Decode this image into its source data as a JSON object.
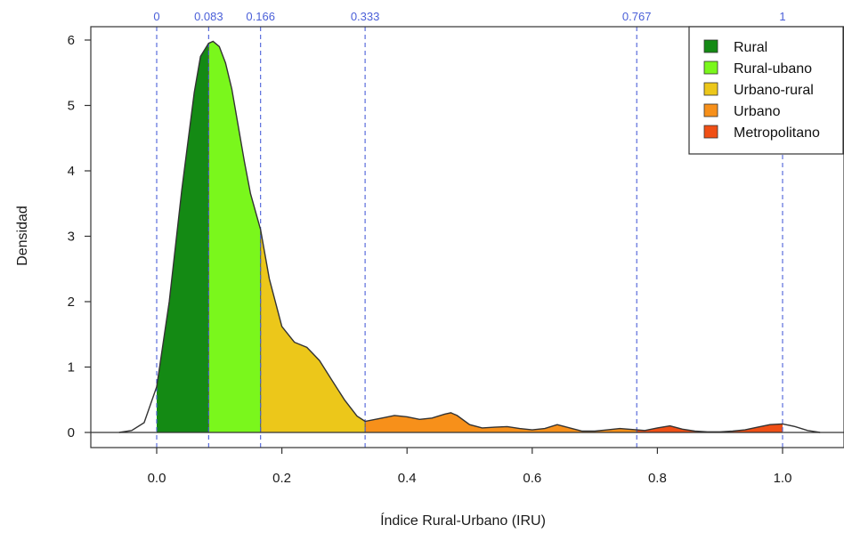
{
  "chart_data": {
    "type": "area",
    "xlabel": "Índice Rural-Urbano (IRU)",
    "ylabel": "Densidad",
    "xlim": [
      -0.1,
      1.1
    ],
    "ylim": [
      -0.25,
      6.2
    ],
    "xticks": [
      0.0,
      0.2,
      0.4,
      0.6,
      0.8,
      1.0
    ],
    "xtick_labels": [
      "0.0",
      "0.2",
      "0.4",
      "0.6",
      "0.8",
      "1.0"
    ],
    "yticks": [
      0,
      1,
      2,
      3,
      4,
      5,
      6
    ],
    "ytick_labels": [
      "0",
      "1",
      "2",
      "3",
      "4",
      "5",
      "6"
    ],
    "thresholds": [
      0,
      0.083,
      0.166,
      0.333,
      0.767,
      1
    ],
    "threshold_labels": [
      "0",
      "0.083",
      "0.166",
      "0.333",
      "0.767",
      "1"
    ],
    "threshold_color": "#4a5fd8",
    "legend_position": "top-right",
    "series": [
      {
        "name": "Rural",
        "color": "#148a14",
        "range": [
          0,
          0.083
        ]
      },
      {
        "name": "Rural-ubano",
        "color": "#7af71c",
        "range": [
          0.083,
          0.166
        ]
      },
      {
        "name": "Urbano-rural",
        "color": "#ecc71a",
        "range": [
          0.166,
          0.333
        ]
      },
      {
        "name": "Urbano",
        "color": "#f7901a",
        "range": [
          0.333,
          0.767
        ]
      },
      {
        "name": "Metropolitano",
        "color": "#f04f15",
        "range": [
          0.767,
          1
        ]
      }
    ],
    "density_curve": {
      "x": [
        -0.06,
        -0.04,
        -0.02,
        0.0,
        0.02,
        0.04,
        0.06,
        0.07,
        0.083,
        0.09,
        0.1,
        0.11,
        0.12,
        0.13,
        0.14,
        0.15,
        0.166,
        0.18,
        0.2,
        0.22,
        0.24,
        0.26,
        0.28,
        0.3,
        0.32,
        0.333,
        0.36,
        0.38,
        0.4,
        0.42,
        0.44,
        0.46,
        0.47,
        0.48,
        0.5,
        0.52,
        0.54,
        0.56,
        0.58,
        0.6,
        0.62,
        0.64,
        0.66,
        0.68,
        0.7,
        0.72,
        0.74,
        0.767,
        0.78,
        0.8,
        0.82,
        0.84,
        0.86,
        0.88,
        0.9,
        0.92,
        0.94,
        0.96,
        0.98,
        1.0,
        1.02,
        1.04,
        1.06
      ],
      "y": [
        0.0,
        0.03,
        0.15,
        0.7,
        2.0,
        3.7,
        5.2,
        5.75,
        5.95,
        5.98,
        5.9,
        5.65,
        5.25,
        4.7,
        4.15,
        3.65,
        3.1,
        2.35,
        1.62,
        1.38,
        1.3,
        1.1,
        0.8,
        0.5,
        0.25,
        0.17,
        0.22,
        0.26,
        0.24,
        0.2,
        0.22,
        0.28,
        0.3,
        0.26,
        0.12,
        0.07,
        0.08,
        0.09,
        0.06,
        0.04,
        0.06,
        0.12,
        0.07,
        0.02,
        0.02,
        0.04,
        0.06,
        0.04,
        0.03,
        0.07,
        0.1,
        0.05,
        0.02,
        0.01,
        0.01,
        0.02,
        0.04,
        0.08,
        0.12,
        0.13,
        0.09,
        0.03,
        0.0
      ]
    }
  }
}
